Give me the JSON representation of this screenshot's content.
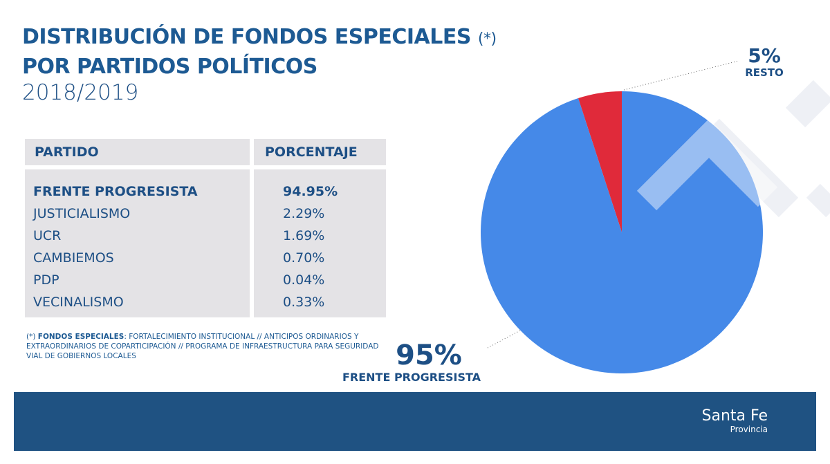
{
  "title": {
    "line1": "DISTRIBUCIÓN DE FONDOS ESPECIALES",
    "asterisk": "(*)",
    "line2": "POR PARTIDOS POLÍTICOS",
    "period": "2018/2019"
  },
  "table": {
    "headers": [
      "PARTIDO",
      "PORCENTAJE"
    ],
    "rows": [
      {
        "partido": "FRENTE PROGRESISTA",
        "porcentaje": "94.95%"
      },
      {
        "partido": "JUSTICIALISMO",
        "porcentaje": "2.29%"
      },
      {
        "partido": "UCR",
        "porcentaje": "1.69%"
      },
      {
        "partido": "CAMBIEMOS",
        "porcentaje": "0.70%"
      },
      {
        "partido": "PDP",
        "porcentaje": "0.04%"
      },
      {
        "partido": "VECINALISMO",
        "porcentaje": "0.33%"
      }
    ]
  },
  "note": {
    "prefix": "(*)",
    "bold": "FONDOS ESPECIALES",
    "text": ": FORTALECIMIENTO INSTITUCIONAL // ANTICIPOS ORDINARIOS Y EXTRAORDINARIOS DE COPARTICIPACIÓN // PROGRAMA DE INFRAESTRUCTURA PARA SEGURIDAD VIAL DE GOBIERNOS LOCALES"
  },
  "chart_data": {
    "type": "pie",
    "slices": [
      {
        "label": "RESTO",
        "value": 5,
        "display": "5%",
        "color": "#e02a3a"
      },
      {
        "label": "FRENTE PROGRESISTA",
        "value": 95,
        "display": "95%",
        "color": "#4589e8"
      }
    ]
  },
  "footer": {
    "brand": "Santa Fe",
    "sub": "Provincia"
  }
}
